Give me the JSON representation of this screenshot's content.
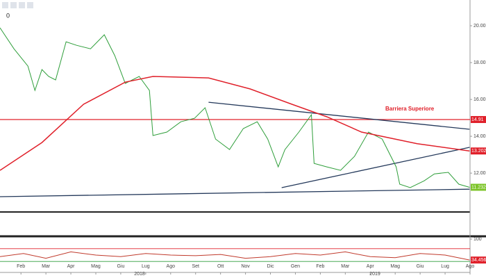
{
  "toolbar": {
    "counter": "0"
  },
  "chart_data": [
    {
      "type": "line",
      "xlim": [
        -0.84,
        18.0
      ],
      "xticks": [
        {
          "value": 0,
          "label": "Feb"
        },
        {
          "value": 1,
          "label": "Mar"
        },
        {
          "value": 2,
          "label": "Apr"
        },
        {
          "value": 3,
          "label": "Mag"
        },
        {
          "value": 4,
          "label": "Giu"
        },
        {
          "value": 5,
          "label": "Lug"
        },
        {
          "value": 6,
          "label": "Ago"
        },
        {
          "value": 7,
          "label": "Set"
        },
        {
          "value": 8,
          "label": "Ott"
        },
        {
          "value": 9,
          "label": "Nov"
        },
        {
          "value": 10,
          "label": "Dic"
        },
        {
          "value": 11,
          "label": "Gen"
        },
        {
          "value": 12,
          "label": "Feb"
        },
        {
          "value": 13,
          "label": "Mar"
        },
        {
          "value": 14,
          "label": "Apr"
        },
        {
          "value": 15,
          "label": "Mag"
        },
        {
          "value": 16,
          "label": "Giu"
        },
        {
          "value": 17,
          "label": "Lug"
        },
        {
          "value": 18,
          "label": "Ago"
        }
      ],
      "years": [
        "2018",
        "2019"
      ],
      "ylim": [
        10.08,
        20.87
      ],
      "yticks": [
        {
          "value": 12,
          "label": "12.00"
        },
        {
          "value": 14,
          "label": "14.00"
        },
        {
          "value": 16,
          "label": "16.00"
        },
        {
          "value": 18,
          "label": "18.00"
        },
        {
          "value": 20,
          "label": "20.00"
        }
      ],
      "annotation": "Barriera Superiore",
      "series": [
        {
          "color": "#2e9e3a",
          "x": [
            -0.84,
            -0.28,
            0.28,
            0.56,
            0.84,
            1.11,
            1.39,
            1.81,
            2.23,
            2.79,
            3.34,
            3.76,
            4.18,
            4.74,
            5.15,
            5.29,
            5.85,
            6.41,
            6.96,
            7.38,
            7.8,
            8.36,
            8.91,
            9.47,
            9.89,
            10.31,
            10.58,
            11.14,
            11.64,
            11.75,
            12.26,
            12.81,
            13.37,
            13.93,
            14.48,
            15.04,
            15.18,
            15.6,
            16.16,
            16.57,
            17.13,
            17.55,
            17.98
          ],
          "values": [
            19.89,
            18.75,
            17.81,
            16.49,
            17.62,
            17.25,
            17.06,
            19.13,
            18.94,
            18.75,
            19.51,
            18.38,
            16.87,
            17.25,
            16.49,
            14.04,
            14.23,
            14.79,
            14.98,
            15.55,
            13.85,
            13.28,
            14.42,
            14.79,
            13.85,
            12.34,
            13.28,
            14.23,
            15.17,
            12.53,
            12.34,
            12.15,
            12.91,
            14.23,
            13.85,
            12.34,
            11.4,
            11.21,
            11.58,
            11.96,
            12.04,
            11.4,
            11.232
          ],
          "tag_color": "#7cc428"
        },
        {
          "color": "#e0202a",
          "x": [
            -0.84,
            0.84,
            2.51,
            4.18,
            5.29,
            7.52,
            9.19,
            10.86,
            12.26,
            13.65,
            15.88,
            17.98
          ],
          "values": [
            12.15,
            13.66,
            15.74,
            16.94,
            17.25,
            17.17,
            16.57,
            15.74,
            15.06,
            14.23,
            13.6,
            13.2021
          ],
          "tag_color": "#e0202a"
        }
      ],
      "trendlines": [
        {
          "color": "#23385a",
          "x": [
            7.52,
            17.98
          ],
          "values": [
            15.85,
            14.38
          ]
        },
        {
          "color": "#23385a",
          "x": [
            10.45,
            17.98
          ],
          "values": [
            11.21,
            13.4
          ]
        },
        {
          "color": "#23385a",
          "x": [
            -0.84,
            17.98
          ],
          "values": [
            10.72,
            11.13
          ]
        }
      ],
      "hlines": [
        {
          "value": 14.91,
          "color": "#e0202a"
        }
      ]
    },
    {
      "type": "line",
      "xlim": [
        -0.84,
        18.0
      ],
      "ylim": [
        0,
        100
      ],
      "yticks": [
        100
      ],
      "hlines": [
        {
          "value": 70,
          "color": "#e0202a"
        },
        {
          "value": 30,
          "color": "#2e9e3a"
        }
      ],
      "series": [
        {
          "color": "#c0392b",
          "x": [
            -0.84,
            0.1,
            1.0,
            2.0,
            3.0,
            4.0,
            5.0,
            6.0,
            7.0,
            8.0,
            9.0,
            10.0,
            11.0,
            12.0,
            13.0,
            14.0,
            15.0,
            16.0,
            17.0,
            17.98
          ],
          "values": [
            45,
            55,
            40,
            60,
            50,
            45,
            55,
            50,
            48,
            52,
            40,
            45,
            55,
            50,
            60,
            45,
            42,
            55,
            50,
            34.4566
          ],
          "tag_color": "#e0202a"
        }
      ]
    }
  ]
}
